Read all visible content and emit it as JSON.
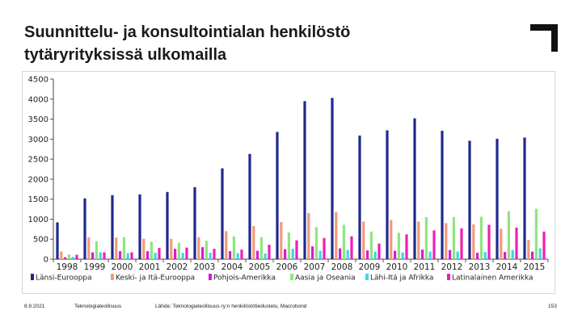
{
  "header": {
    "title_line1": "Suunnittelu- ja konsultointialan henkilöstö",
    "title_line2": "tytäryrityksissä ulkomailla"
  },
  "footer": {
    "date": "8.9.2021",
    "org": "Teknologiateollisuus",
    "source": "Lähde: Teknologiateollisuus ry:n henkilöstötiedustelu, Macrobond",
    "page": "153"
  },
  "colors": {
    "series": [
      "#1f2a8c",
      "#f39a7a",
      "#d51cd5",
      "#8ee67f",
      "#3fd6e8",
      "#ee1fb4"
    ],
    "logo": "#111111"
  },
  "chart_data": {
    "type": "bar",
    "title": "",
    "xlabel": "",
    "ylabel": "",
    "ylim": [
      0,
      4500
    ],
    "yticks": [
      0,
      500,
      1000,
      1500,
      2000,
      2500,
      3000,
      3500,
      4000,
      4500
    ],
    "legend_position": "bottom",
    "categories": [
      "1998",
      "1999",
      "2000",
      "2001",
      "2002",
      "2003",
      "2004",
      "2005",
      "2006",
      "2007",
      "2008",
      "2009",
      "2010",
      "2011",
      "2012",
      "2013",
      "2014",
      "2015"
    ],
    "series": [
      {
        "name": "Länsi-Eurooppa",
        "values": [
          920,
          1520,
          1600,
          1620,
          1680,
          1800,
          2270,
          2630,
          3180,
          3950,
          4030,
          3090,
          3220,
          3520,
          3210,
          2960,
          3010,
          3040
        ]
      },
      {
        "name": "Keski- ja Itä-Eurooppa",
        "values": [
          190,
          550,
          540,
          510,
          510,
          550,
          700,
          830,
          930,
          1150,
          1180,
          940,
          980,
          940,
          900,
          870,
          760,
          480
        ]
      },
      {
        "name": "Pohjois-Amerikka",
        "values": [
          50,
          170,
          200,
          200,
          260,
          300,
          200,
          210,
          250,
          320,
          270,
          220,
          210,
          240,
          230,
          160,
          180,
          190
        ]
      },
      {
        "name": "Aasia ja Oseania",
        "values": [
          120,
          450,
          550,
          440,
          410,
          460,
          570,
          550,
          670,
          800,
          860,
          690,
          660,
          1050,
          1050,
          1060,
          1200,
          1260
        ]
      },
      {
        "name": "Lähi-Itä ja Afrikka",
        "values": [
          60,
          170,
          150,
          160,
          160,
          160,
          150,
          140,
          260,
          210,
          230,
          190,
          170,
          190,
          190,
          180,
          230,
          270
        ]
      },
      {
        "name": "Latinalainen Amerikka",
        "values": [
          110,
          170,
          170,
          280,
          290,
          260,
          240,
          360,
          470,
          530,
          570,
          390,
          620,
          720,
          770,
          860,
          790,
          690
        ]
      }
    ]
  }
}
